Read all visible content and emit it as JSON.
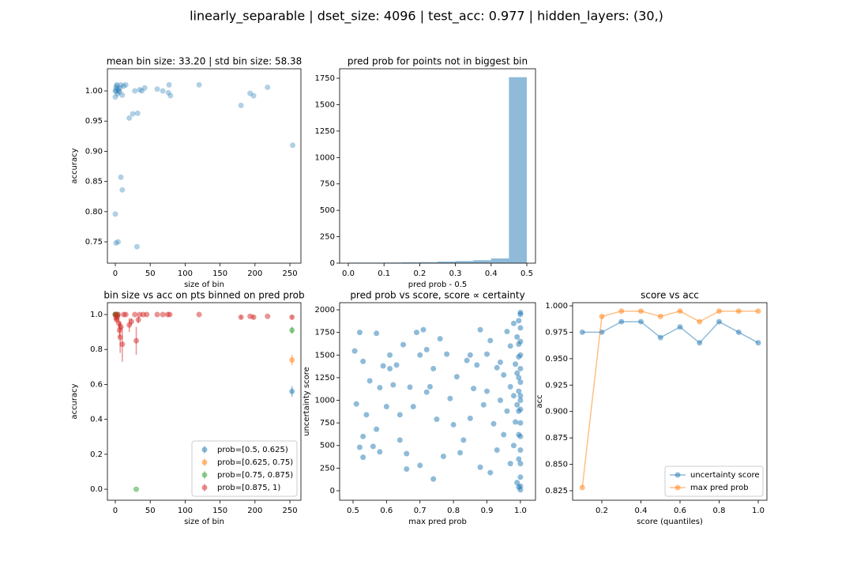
{
  "title": "linearly_separable | dset_size: 4096 | test_acc: 0.977 | hidden_layers: (30,)",
  "chart_data": [
    {
      "type": "scatter",
      "title": "mean bin size: 33.20 | std bin size: 58.38",
      "x_label": "size of bin",
      "y_label": "accuracy",
      "color": "#1f77b4",
      "x": [
        0,
        1,
        2,
        3,
        0,
        1,
        2,
        4,
        5,
        6,
        7,
        8,
        10,
        12,
        15,
        20,
        25,
        28,
        32,
        35,
        38,
        42,
        60,
        68,
        77,
        76,
        79,
        120,
        180,
        193,
        198,
        218,
        254,
        8,
        10,
        0,
        1,
        4,
        31
      ],
      "values": [
        1.0,
        1.005,
        1.008,
        0.995,
        0.99,
        1.0,
        1.01,
        1.003,
        1.0,
        0.998,
        1.005,
        1.01,
        0.993,
        1.008,
        1.01,
        0.955,
        0.962,
        1.0,
        0.963,
        1.002,
        1.0,
        1.005,
        1.003,
        1.0,
        1.01,
        0.997,
        0.992,
        1.01,
        0.976,
        0.996,
        0.992,
        1.006,
        0.91,
        0.857,
        0.836,
        0.796,
        0.748,
        0.75,
        0.742
      ],
      "xlim": [
        -11.3,
        265.8
      ],
      "xticks": [
        0,
        50,
        100,
        150,
        200,
        250
      ],
      "ylim": [
        0.7147,
        1.0367
      ],
      "yticks": [
        0.75,
        {
          "value": 0.8,
          "label": "0.80"
        },
        0.85,
        {
          "value": 0.9,
          "label": "0.90"
        },
        0.95,
        {
          "value": 1.0,
          "label": "1.00"
        }
      ]
    },
    {
      "type": "histogram",
      "title": "pred prob for points not in biggest bin",
      "x_label": "pred prob - 0.5",
      "color": "#1f77b4",
      "bins": [
        0,
        0.05,
        0.1,
        0.15,
        0.2,
        0.25,
        0.3,
        0.35,
        0.4,
        0.45,
        0.5
      ],
      "values": [
        5,
        5,
        6,
        8,
        10,
        15,
        20,
        28,
        45,
        1760
      ],
      "xlim": [
        -0.0243,
        0.5243
      ],
      "xticks": [
        {
          "value": 0,
          "label": "0.0"
        },
        0.1,
        0.2,
        0.3,
        0.4,
        0.5
      ],
      "ylim": [
        0,
        1840
      ],
      "yticks": [
        0,
        250,
        500,
        750,
        1000,
        1250,
        1500,
        1750
      ]
    },
    {
      "type": "errorbar",
      "title": "bin size vs acc on pts binned on pred prob",
      "x_label": "size of bin",
      "y_label": "accuracy",
      "legend": "lower right",
      "series": [
        {
          "name": "prob=[0.5, 0.625)",
          "color": "#1f77b4",
          "x": [
            0,
            1,
            253
          ],
          "values": [
            1.0,
            1.0,
            0.56
          ],
          "errors": [
            0,
            0,
            0.03
          ]
        },
        {
          "name": "prob=[0.625, 0.75)",
          "color": "#ff7f0e",
          "x": [
            1,
            253
          ],
          "values": [
            1.0,
            0.74
          ],
          "errors": [
            0,
            0.03
          ]
        },
        {
          "name": "prob=[0.75, 0.875)",
          "color": "#2ca02c",
          "x": [
            0,
            1,
            2,
            3,
            30,
            253
          ],
          "values": [
            1.0,
            1.0,
            0.99,
            1.0,
            0.0,
            0.91
          ],
          "errors": [
            0,
            0,
            0,
            0,
            0,
            0.02
          ]
        },
        {
          "name": "prob=[0.875, 1)",
          "color": "#d62728",
          "x": [
            0,
            1,
            2,
            3,
            4,
            5,
            6,
            7,
            8,
            10,
            12,
            15,
            20,
            23,
            28,
            30,
            33,
            35,
            40,
            45,
            60,
            68,
            75,
            78,
            120,
            180,
            193,
            198,
            218,
            253
          ],
          "values": [
            1.0,
            0.98,
            0.97,
            0.99,
            1.0,
            0.95,
            0.91,
            0.87,
            0.93,
            0.83,
            1.0,
            1.0,
            0.94,
            0.96,
            1.0,
            0.85,
            0.97,
            1.0,
            1.0,
            1.0,
            1.0,
            1.0,
            1.0,
            1.0,
            1.0,
            0.985,
            0.99,
            0.985,
            0.99,
            0.985
          ],
          "errors": [
            0,
            0.01,
            0.01,
            0,
            0,
            0.03,
            0.04,
            0.09,
            0.02,
            0.1,
            0,
            0,
            0.04,
            0.02,
            0,
            0.08,
            0.02,
            0,
            0,
            0,
            0,
            0,
            0,
            0,
            0,
            0.01,
            0,
            0.01,
            0,
            0.01
          ]
        }
      ],
      "xlim": [
        -11.3,
        265.8
      ],
      "xticks": [
        0,
        50,
        100,
        150,
        200,
        250
      ],
      "ylim": [
        -0.063,
        1.068
      ],
      "yticks": [
        {
          "value": 0,
          "label": "0.0"
        },
        0.2,
        0.4,
        0.6,
        0.8,
        {
          "value": 1,
          "label": "1.0"
        }
      ]
    },
    {
      "type": "scatter",
      "title": "pred prob vs score, score ∝ certainty",
      "x_label": "max pred prob",
      "y_label": "uncertainty score",
      "color": "#1f77b4",
      "x": [
        0.505,
        0.51,
        0.52,
        0.52,
        0.53,
        0.53,
        0.53,
        0.54,
        0.55,
        0.56,
        0.57,
        0.57,
        0.58,
        0.58,
        0.59,
        0.6,
        0.61,
        0.61,
        0.62,
        0.63,
        0.64,
        0.64,
        0.65,
        0.66,
        0.66,
        0.67,
        0.68,
        0.69,
        0.7,
        0.7,
        0.71,
        0.72,
        0.72,
        0.73,
        0.74,
        0.74,
        0.75,
        0.76,
        0.77,
        0.78,
        0.79,
        0.8,
        0.81,
        0.82,
        0.83,
        0.84,
        0.85,
        0.85,
        0.86,
        0.87,
        0.88,
        0.88,
        0.89,
        0.9,
        0.9,
        0.91,
        0.91,
        0.92,
        0.93,
        0.93,
        0.94,
        0.94,
        0.95,
        0.95,
        0.96,
        0.96,
        0.97,
        0.97,
        0.97,
        0.98,
        0.98,
        0.98,
        0.985,
        0.985,
        0.99,
        0.99,
        0.99,
        0.99,
        0.995,
        0.995,
        0.995,
        0.995,
        0.995,
        0.995,
        0.995,
        0.995,
        0.995,
        1.0,
        1.0,
        1.0,
        1.0,
        1.0,
        1.0,
        1.0,
        1.0,
        1.0,
        1.0,
        1.0,
        1.0,
        1.0,
        1.0,
        1.0,
        1.0,
        1.0
      ],
      "values": [
        1545,
        960,
        480,
        1750,
        370,
        1430,
        600,
        840,
        1215,
        490,
        1740,
        680,
        1140,
        430,
        1380,
        930,
        1350,
        1500,
        1170,
        1390,
        840,
        560,
        1615,
        410,
        240,
        1145,
        930,
        1750,
        1500,
        280,
        1780,
        1560,
        1090,
        1150,
        130,
        1350,
        790,
        1680,
        380,
        1510,
        1020,
        730,
        1260,
        420,
        560,
        1440,
        1500,
        800,
        1130,
        1390,
        260,
        1780,
        950,
        1510,
        1100,
        200,
        1660,
        740,
        1360,
        450,
        1000,
        1420,
        620,
        1280,
        880,
        1760,
        300,
        1150,
        1600,
        500,
        1850,
        1050,
        760,
        1400,
        90,
        1300,
        1700,
        950,
        40,
        350,
        620,
        880,
        1100,
        1250,
        1480,
        1620,
        1880,
        10,
        150,
        300,
        450,
        600,
        750,
        900,
        1050,
        1200,
        1350,
        1500,
        1650,
        1800,
        1950,
        1970,
        50,
        1000
      ],
      "xlim": [
        0.46,
        1.045
      ],
      "xticks": [
        0.5,
        0.6,
        0.7,
        0.8,
        0.9,
        {
          "value": 1,
          "label": "1.0"
        }
      ],
      "ylim": [
        -105,
        2079
      ],
      "yticks": [
        0,
        250,
        500,
        750,
        1000,
        1250,
        1500,
        1750,
        2000
      ]
    },
    {
      "type": "line",
      "title": "score vs acc",
      "x_label": "score (quantiles)",
      "y_label": "acc",
      "legend": "lower right",
      "x": [
        0.1,
        0.2,
        0.3,
        0.4,
        0.5,
        0.6,
        0.7,
        0.8,
        0.9,
        1.0
      ],
      "series": [
        {
          "name": "uncertainty score",
          "color": "#1f77b4",
          "values": [
            0.975,
            0.975,
            0.985,
            0.985,
            0.97,
            0.98,
            0.965,
            0.985,
            0.975,
            0.965
          ]
        },
        {
          "name": "max pred prob",
          "color": "#ff7f0e",
          "values": [
            0.828,
            0.99,
            0.995,
            0.995,
            0.99,
            0.995,
            0.985,
            0.995,
            0.995,
            0.995
          ]
        }
      ],
      "xlim": [
        0.0505,
        1.0444
      ],
      "xticks": [
        0.2,
        0.4,
        0.6,
        0.8,
        {
          "value": 1,
          "label": "1.0"
        }
      ],
      "ylim": [
        0.816,
        1.003
      ],
      "yticks": [
        0.825,
        {
          "value": 0.85,
          "label": "0.850"
        },
        0.875,
        {
          "value": 0.9,
          "label": "0.900"
        },
        0.925,
        {
          "value": 0.95,
          "label": "0.950"
        },
        0.975,
        {
          "value": 1,
          "label": "1.000"
        }
      ]
    }
  ]
}
